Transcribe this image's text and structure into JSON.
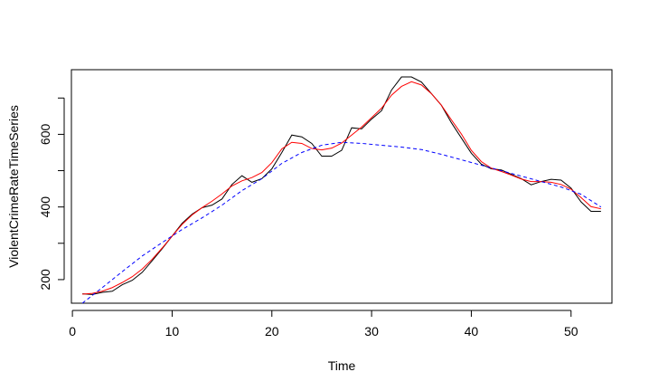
{
  "chart_data": {
    "type": "line",
    "title": "",
    "xlabel": "Time",
    "ylabel": "ViolentCrimeRateTimeSeries",
    "xlim": [
      -0.1,
      54.1
    ],
    "ylim": [
      135,
      778
    ],
    "xticks": [
      0,
      10,
      20,
      30,
      40,
      50
    ],
    "yticks": [
      200,
      400,
      600
    ],
    "ytick_labels_shown": [
      200,
      400,
      600
    ],
    "grid": false,
    "series": [
      {
        "color": "#000000",
        "dash": "solid",
        "x": [
          1,
          2,
          3,
          4,
          5,
          6,
          7,
          8,
          9,
          10,
          11,
          12,
          13,
          14,
          15,
          16,
          17,
          18,
          19,
          20,
          21,
          22,
          23,
          24,
          25,
          26,
          27,
          28,
          29,
          30,
          31,
          32,
          33,
          34,
          35,
          36,
          37,
          38,
          39,
          40,
          41,
          42,
          43,
          44,
          45,
          46,
          47,
          48,
          49,
          50,
          51,
          52,
          53
        ],
        "values": [
          161,
          159,
          165,
          168,
          186,
          198,
          220,
          252,
          285,
          320,
          355,
          380,
          398,
          405,
          422,
          462,
          486,
          468,
          478,
          505,
          550,
          598,
          593,
          575,
          540,
          540,
          556,
          618,
          615,
          642,
          665,
          722,
          758,
          758,
          744,
          712,
          680,
          632,
          590,
          548,
          518,
          505,
          502,
          490,
          478,
          461,
          470,
          476,
          474,
          452,
          414,
          388,
          388
        ]
      },
      {
        "color": "#ff0000",
        "dash": "solid",
        "x": [
          1,
          2,
          3,
          4,
          5,
          6,
          7,
          8,
          9,
          10,
          11,
          12,
          13,
          14,
          15,
          16,
          17,
          18,
          19,
          20,
          21,
          22,
          23,
          24,
          25,
          26,
          27,
          28,
          29,
          30,
          31,
          32,
          33,
          34,
          35,
          36,
          37,
          38,
          39,
          40,
          41,
          42,
          43,
          44,
          45,
          46,
          47,
          48,
          49,
          50,
          51,
          52,
          53
        ],
        "values": [
          160,
          162,
          168,
          178,
          192,
          208,
          229,
          256,
          287,
          320,
          352,
          378,
          398,
          416,
          436,
          458,
          472,
          481,
          495,
          522,
          560,
          578,
          575,
          561,
          557,
          562,
          576,
          598,
          620,
          646,
          672,
          708,
          732,
          745,
          736,
          712,
          680,
          640,
          601,
          556,
          525,
          507,
          498,
          488,
          477,
          470,
          470,
          468,
          462,
          449,
          426,
          401,
          395
        ]
      },
      {
        "color": "#0000ff",
        "dash": "dashed",
        "x": [
          1,
          3,
          5,
          7,
          9,
          11,
          13,
          15,
          17,
          19,
          21,
          23,
          25,
          27,
          29,
          31,
          33,
          35,
          37,
          39,
          41,
          43,
          45,
          47,
          49,
          51,
          53
        ],
        "values": [
          135,
          178,
          222,
          265,
          302,
          338,
          370,
          405,
          445,
          478,
          520,
          550,
          570,
          578,
          575,
          570,
          565,
          558,
          545,
          530,
          515,
          500,
          485,
          470,
          455,
          435,
          400
        ]
      }
    ]
  }
}
